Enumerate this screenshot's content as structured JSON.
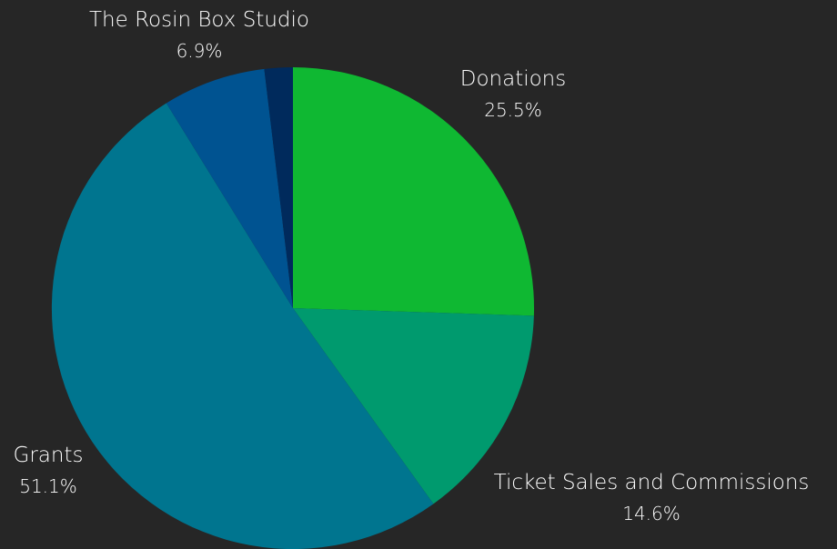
{
  "chart_data": {
    "type": "pie",
    "title": "",
    "start_angle": "12 o'clock, clockwise",
    "slices": [
      {
        "name": "Donations",
        "value": 25.5,
        "pct_label": "25.5%",
        "color": "#0fb832"
      },
      {
        "name": "Ticket Sales and Commissions",
        "value": 14.6,
        "pct_label": "14.6%",
        "color": "#009a6e"
      },
      {
        "name": "Grants",
        "value": 51.1,
        "pct_label": "51.1%",
        "color": "#00758f"
      },
      {
        "name": "The Rosin Box Studio",
        "value": 6.9,
        "pct_label": "6.9%",
        "color": "#005391"
      },
      {
        "name": "",
        "value": 1.9,
        "pct_label": "",
        "color": "#002a5c"
      }
    ],
    "background": "#262626",
    "label_color": "#ffffff",
    "legend": "none"
  }
}
